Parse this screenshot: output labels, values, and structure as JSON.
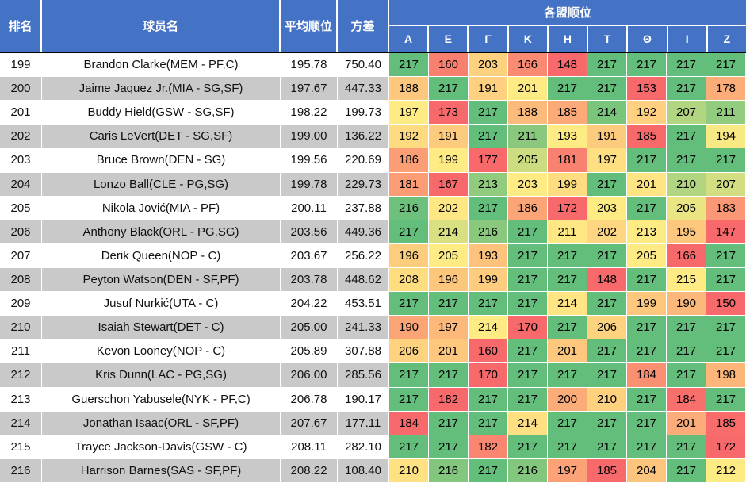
{
  "header": {
    "rank": "排名",
    "player": "球员名",
    "avg": "平均顺位",
    "variance": "方差",
    "league_group": "各盟顺位",
    "leagues": [
      "Α",
      "Ε",
      "Γ",
      "Κ",
      "Η",
      "Τ",
      "Θ",
      "Ι",
      "Ζ"
    ]
  },
  "colors": {
    "header_bg": "#4472C4",
    "header_text": "#FFFFFF",
    "row_white": "#FFFFFF",
    "row_gray": "#C9C9C9",
    "scale_min": "#F8696B",
    "scale_mid": "#FFEB84",
    "scale_max": "#63BE7B"
  },
  "rows": [
    {
      "rank": "199",
      "player": "Brandon Clarke(MEM - PF,C)",
      "avg": "195.78",
      "variance": "750.40",
      "league_ranks": [
        217,
        160,
        203,
        166,
        148,
        217,
        217,
        217,
        217
      ]
    },
    {
      "rank": "200",
      "player": "Jaime Jaquez Jr.(MIA - SG,SF)",
      "avg": "197.67",
      "variance": "447.33",
      "league_ranks": [
        188,
        217,
        191,
        201,
        217,
        217,
        153,
        217,
        178
      ]
    },
    {
      "rank": "201",
      "player": "Buddy Hield(GSW - SG,SF)",
      "avg": "198.22",
      "variance": "199.73",
      "league_ranks": [
        197,
        173,
        217,
        188,
        185,
        214,
        192,
        207,
        211
      ]
    },
    {
      "rank": "202",
      "player": "Caris LeVert(DET - SG,SF)",
      "avg": "199.00",
      "variance": "136.22",
      "league_ranks": [
        192,
        191,
        217,
        211,
        193,
        191,
        185,
        217,
        194
      ]
    },
    {
      "rank": "203",
      "player": "Bruce Brown(DEN - SG)",
      "avg": "199.56",
      "variance": "220.69",
      "league_ranks": [
        186,
        199,
        177,
        205,
        181,
        197,
        217,
        217,
        217
      ]
    },
    {
      "rank": "204",
      "player": "Lonzo Ball(CLE - PG,SG)",
      "avg": "199.78",
      "variance": "229.73",
      "league_ranks": [
        181,
        167,
        213,
        203,
        199,
        217,
        201,
        210,
        207
      ]
    },
    {
      "rank": "205",
      "player": "Nikola Jović(MIA - PF)",
      "avg": "200.11",
      "variance": "237.88",
      "league_ranks": [
        216,
        202,
        217,
        186,
        172,
        203,
        217,
        205,
        183
      ]
    },
    {
      "rank": "206",
      "player": "Anthony Black(ORL - PG,SG)",
      "avg": "203.56",
      "variance": "449.36",
      "league_ranks": [
        217,
        214,
        216,
        217,
        211,
        202,
        213,
        195,
        147
      ]
    },
    {
      "rank": "207",
      "player": "Derik Queen(NOP - C)",
      "avg": "203.67",
      "variance": "256.22",
      "league_ranks": [
        196,
        205,
        193,
        217,
        217,
        217,
        205,
        166,
        217
      ]
    },
    {
      "rank": "208",
      "player": "Peyton Watson(DEN - SF,PF)",
      "avg": "203.78",
      "variance": "448.62",
      "league_ranks": [
        208,
        196,
        199,
        217,
        217,
        148,
        217,
        215,
        217
      ]
    },
    {
      "rank": "209",
      "player": "Jusuf Nurkić(UTA - C)",
      "avg": "204.22",
      "variance": "453.51",
      "league_ranks": [
        217,
        217,
        217,
        217,
        214,
        217,
        199,
        190,
        150
      ]
    },
    {
      "rank": "210",
      "player": "Isaiah Stewart(DET - C)",
      "avg": "205.00",
      "variance": "241.33",
      "league_ranks": [
        190,
        197,
        214,
        170,
        217,
        206,
        217,
        217,
        217
      ]
    },
    {
      "rank": "211",
      "player": "Kevon Looney(NOP - C)",
      "avg": "205.89",
      "variance": "307.88",
      "league_ranks": [
        206,
        201,
        160,
        217,
        201,
        217,
        217,
        217,
        217
      ]
    },
    {
      "rank": "212",
      "player": "Kris Dunn(LAC - PG,SG)",
      "avg": "206.00",
      "variance": "285.56",
      "league_ranks": [
        217,
        217,
        170,
        217,
        217,
        217,
        184,
        217,
        198
      ]
    },
    {
      "rank": "213",
      "player": "Guerschon Yabusele(NYK - PF,C)",
      "avg": "206.78",
      "variance": "190.17",
      "league_ranks": [
        217,
        182,
        217,
        217,
        200,
        210,
        217,
        184,
        217
      ]
    },
    {
      "rank": "214",
      "player": "Jonathan Isaac(ORL - SF,PF)",
      "avg": "207.67",
      "variance": "177.11",
      "league_ranks": [
        184,
        217,
        217,
        214,
        217,
        217,
        217,
        201,
        185
      ]
    },
    {
      "rank": "215",
      "player": "Trayce Jackson-Davis(GSW - C)",
      "avg": "208.11",
      "variance": "282.10",
      "league_ranks": [
        217,
        217,
        182,
        217,
        217,
        217,
        217,
        217,
        172
      ]
    },
    {
      "rank": "216",
      "player": "Harrison Barnes(SAS - SF,PF)",
      "avg": "208.22",
      "variance": "108.40",
      "league_ranks": [
        210,
        216,
        217,
        216,
        197,
        185,
        204,
        217,
        212
      ]
    }
  ]
}
